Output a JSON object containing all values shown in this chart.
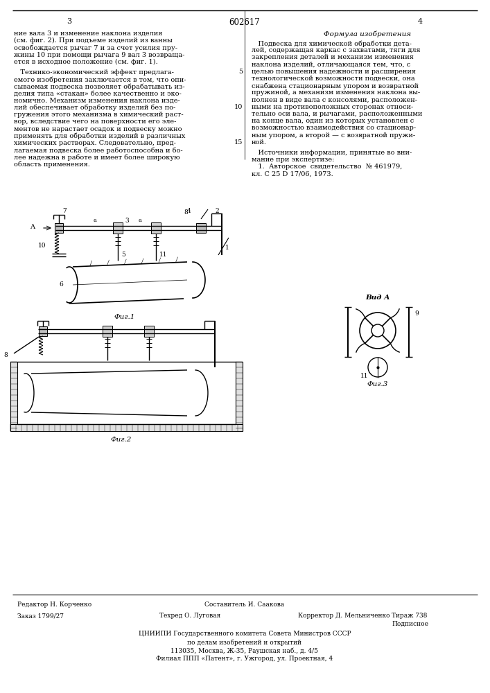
{
  "page_number_left": "3",
  "patent_number": "602617",
  "page_number_right": "4",
  "title_section": "Формула изобретения",
  "left_col_text": [
    "ние вала 3 и изменение наклона изделия",
    "(см. фиг. 2). При подъеме изделий из ванны",
    "освобождается рычаг 7 и за счет усилия пру-",
    "жины 10 при помощи рычага 9 вал 3 возвраща-",
    "ется в исходное положение (см. фиг. 1).",
    "",
    "   Технико-экономический эффект предлага-",
    "емого изобретения заключается в том, что опи-",
    "сываемая подвеска позволяет обрабатывать из-",
    "делия типа «стакан» более качественно и эко-",
    "номично. Механизм изменения наклона изде-",
    "лий обеспечивает обработку изделий без по-",
    "гружения этого механизма в химический раст-",
    "вор, вследствие чего на поверхности его эле-",
    "ментов не нарастает осадок и подвеску можно",
    "применять для обработки изделий в различных",
    "химических растворах. Следовательно, пред-",
    "лагаемая подвеска более работоспособна и бо-",
    "лее надежна в работе и имеет более широкую",
    "область применения."
  ],
  "right_col_text": [
    "   Подвеска для химической обработки дета-",
    "лей, содержащая каркас с захватами, тяги для",
    "закрепления деталей и механизм изменения",
    "наклона изделий, отличающаяся тем, что, с",
    "целью повышения надежности и расширения",
    "технологической возможности подвески, она",
    "снабжена стационарным упором и возвратной",
    "пружиной, а механизм изменения наклона вы-",
    "полнен в виде вала с консолями, расположен-",
    "ными на противоположных сторонах относи-",
    "тельно оси вала, и рычагами, расположенными",
    "на конце вала, один из которых установлен с",
    "возможностью взаимодействия со стационар-",
    "ным упором, а второй — с возвратной пружи-",
    "ной.",
    "",
    "   Источники информации, принятые во вни-",
    "мание при экспертизе:",
    "   1.  Авторское  свидетельство  № 461979,",
    "кл. С 25 D 17/06, 1973."
  ],
  "line_markers": [
    5,
    10,
    15
  ],
  "fig1_caption": "Фиг.1",
  "fig2_caption": "Фиг.2",
  "fig3_caption": "Фиг.3",
  "vid_a_caption": "Вид А",
  "editor_label": "Редактор Н. Корченко",
  "composer_label": "Составитель И. Саакова",
  "order_label": "Заказ 1799/27",
  "techred_label": "Техред О. Луговая",
  "corrector_label": "Корректор Д. Мельниченко",
  "tirazh_label": "Тираж 738",
  "podpisnoe_label": "Подписное",
  "org1": "ЦНИИПИ Государственного комитета Совета Министров СССР",
  "org2": "по делам изобретений и открытий",
  "org3": "113035, Москва, Ж-35, Раушская наб., д. 4/5",
  "org4": "Филиал ППП «Патент», г. Ужгород, ул. Проектная, 4",
  "bg_color": "#ffffff"
}
